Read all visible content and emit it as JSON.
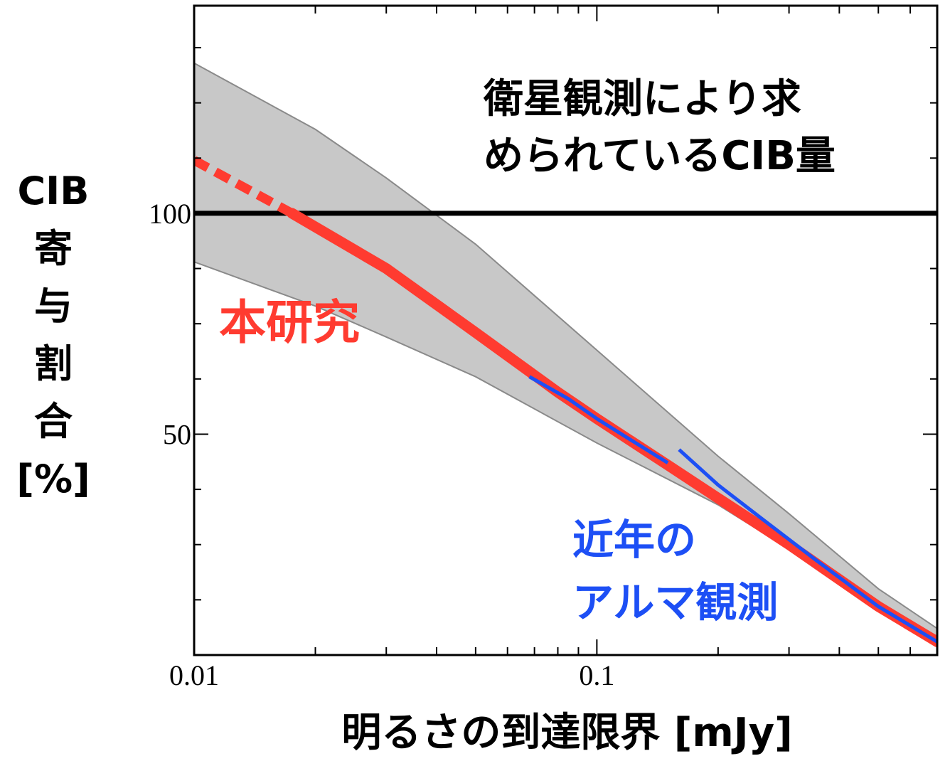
{
  "chart_data": {
    "type": "line",
    "xscale": "log",
    "xlim": [
      0.01,
      0.7
    ],
    "ylim": [
      0,
      147
    ],
    "x_ticks": [
      {
        "value": 0.01,
        "label": "0.01"
      },
      {
        "value": 0.1,
        "label": "0.1"
      }
    ],
    "y_ticks": [
      {
        "value": 50,
        "label": "50"
      },
      {
        "value": 100,
        "label": "100"
      }
    ],
    "y_minor_ticks": [
      12.5,
      25,
      37.5,
      62.5,
      75,
      87.5,
      112.5,
      125,
      137.5
    ],
    "xlabel": "明るさの到達限界 [mJy]",
    "ylabel": [
      "CIB",
      "寄",
      "与",
      "割",
      "合",
      "[%]"
    ],
    "reference_line": {
      "y": 100,
      "color": "#000000"
    },
    "series": [
      {
        "key": "this_work",
        "color": "#ff3b30",
        "dashed_below_x": 0.0175,
        "x": [
          0.01,
          0.0175,
          0.03,
          0.05,
          0.08,
          0.1,
          0.15,
          0.2,
          0.3,
          0.5,
          0.7
        ],
        "y": [
          112,
          100,
          87.5,
          73,
          59.5,
          53.5,
          43,
          35.5,
          25,
          11,
          3
        ]
      },
      {
        "key": "alma_a",
        "color": "#1d4ff5",
        "x": [
          0.068,
          0.085,
          0.1,
          0.12,
          0.15
        ],
        "y": [
          63,
          58,
          53.5,
          49,
          43.5
        ]
      },
      {
        "key": "alma_b",
        "color": "#1d4ff5",
        "x": [
          0.16,
          0.2,
          0.26,
          0.35,
          0.5,
          0.7
        ],
        "y": [
          46.5,
          38.5,
          30.5,
          21.5,
          11,
          3
        ]
      }
    ],
    "band": {
      "color": "#c8c8c8",
      "x": [
        0.01,
        0.02,
        0.03,
        0.05,
        0.1,
        0.2,
        0.3,
        0.5,
        0.7
      ],
      "upper": [
        134,
        119,
        108,
        93,
        69,
        45,
        32,
        15,
        6
      ],
      "lower": [
        89,
        79,
        72,
        63,
        48,
        34,
        24,
        11,
        4
      ]
    },
    "annotations": {
      "satellite": [
        "衛星観測により求",
        "められているCIB量"
      ],
      "this_work": "本研究",
      "alma": [
        "近年の",
        "アルマ観測"
      ]
    }
  }
}
